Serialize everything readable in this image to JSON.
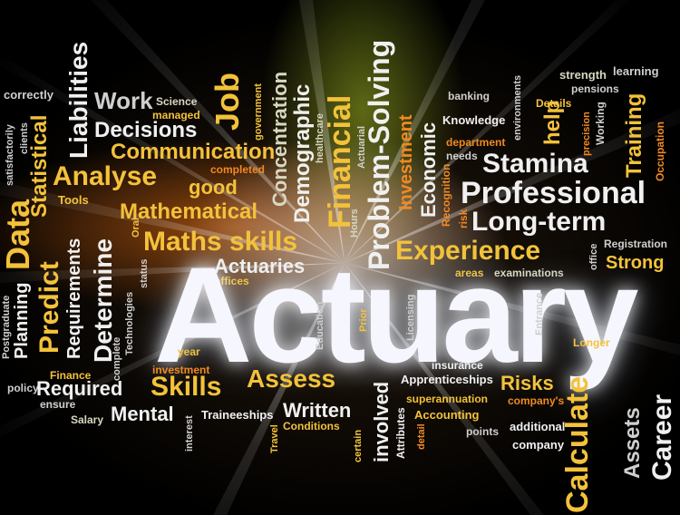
{
  "hero": "Actuary",
  "words": {
    "work": "Work",
    "science": "Science",
    "managed": "managed",
    "job": "Job",
    "government": "government",
    "concentration": "Concentration",
    "demographic": "Demographic",
    "financial": "Financial",
    "problem_solving": "Problem-Solving",
    "investment_cap": "Investment",
    "economic": "Economic",
    "banking": "banking",
    "environments": "environments",
    "strength": "strength",
    "learning": "learning",
    "pensions": "pensions",
    "details": "Details",
    "precision": "precision",
    "working": "Working",
    "help": "help",
    "training": "Training",
    "occupation": "Occupation",
    "knowledge": "Knowledge",
    "department": "department",
    "needs": "needs",
    "healthcare": "healthcare",
    "actuarial": "Actuarial",
    "stamina": "Stamina",
    "professional": "Professional",
    "long_term": "Long-term",
    "registration": "Registration",
    "office": "office",
    "strong": "Strong",
    "experience": "Experience",
    "recognition": "Recognition",
    "risk": "risk",
    "hours": "Hours",
    "areas": "areas",
    "examinations": "examinations",
    "correctly": "correctly",
    "satisfactorily": "satisfactorily",
    "clients": "clients",
    "statistical": "Statistical",
    "liabilities": "Liabilities",
    "decisions": "Decisions",
    "communication": "Communication",
    "completed": "completed",
    "analyse": "Analyse",
    "good": "good",
    "data": "Data",
    "predict": "Predict",
    "tools": "Tools",
    "requirements": "Requirements",
    "determine": "Determine",
    "mathematical": "Mathematical",
    "maths_skills": "Maths skills",
    "oral": "Oral",
    "actuaries": "Actuaries",
    "offices": "offices",
    "status": "status",
    "technologies": "Technologies",
    "complete": "complete",
    "postgraduate": "Postgraduate",
    "planning": "Planning",
    "education": "Education",
    "prior": "Prior",
    "licensing": "Licensing",
    "entrance": "Entrance",
    "longer": "Longer",
    "year": "year",
    "investment": "investment",
    "finance": "Finance",
    "policy": "policy",
    "required": "Required",
    "skills": "Skills",
    "assess": "Assess",
    "apprenticeships": "Apprenticeships",
    "insurance": "insurance",
    "risks": "Risks",
    "superannuation": "superannuation",
    "companys": "company's",
    "calculate": "Calculate",
    "career": "Career",
    "assets": "Assets",
    "ensure": "ensure",
    "salary": "Salary",
    "mental": "Mental",
    "traineeships": "Traineeships",
    "written": "Written",
    "conditions": "Conditions",
    "involved": "involved",
    "accounting": "Accounting",
    "points": "points",
    "additional": "additional",
    "company": "company",
    "interest": "interest",
    "travel": "Travel",
    "certain": "certain",
    "attributes": "Attributes",
    "detail": "detail"
  }
}
